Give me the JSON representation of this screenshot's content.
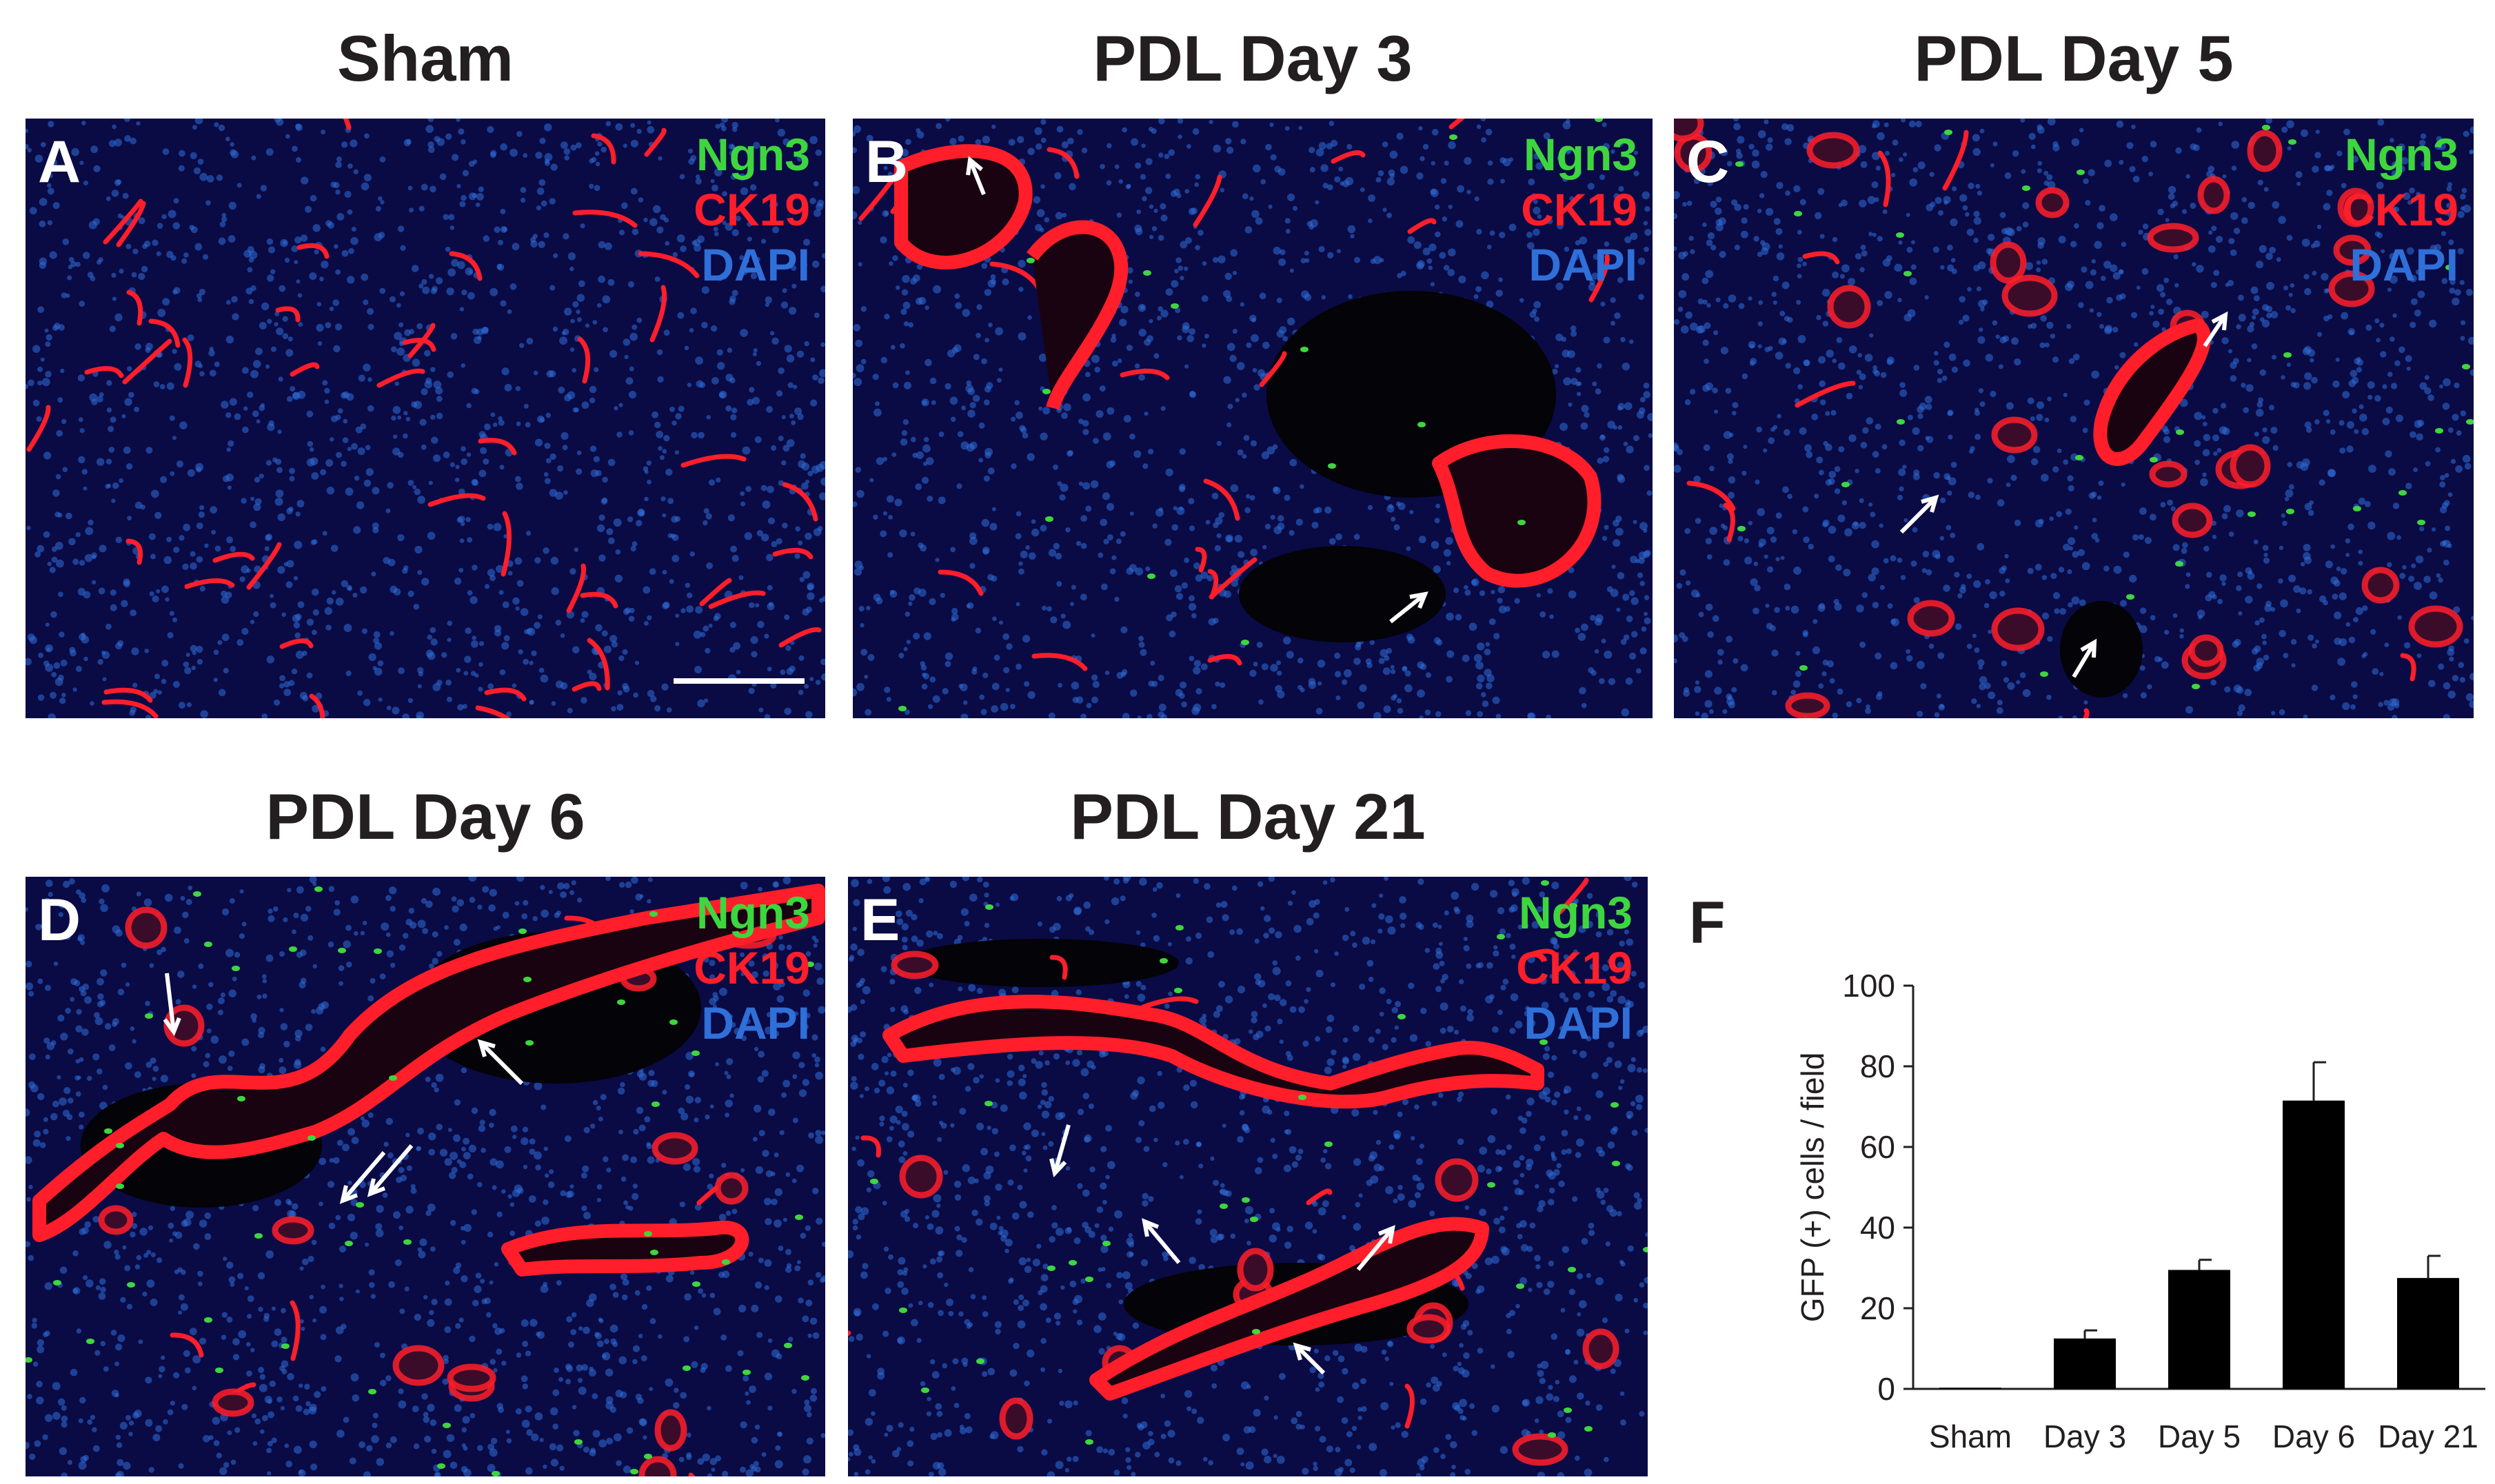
{
  "panels": [
    {
      "id": "A",
      "title": "Sham",
      "letter": "A",
      "legend": [
        "Ngn3",
        "CK19",
        "DAPI"
      ],
      "scale_bar": true
    },
    {
      "id": "B",
      "title": "PDL Day 3",
      "letter": "B",
      "legend": [
        "Ngn3",
        "CK19",
        "DAPI"
      ]
    },
    {
      "id": "C",
      "title": "PDL Day 5",
      "letter": "C",
      "legend": [
        "Ngn3",
        "CK19",
        "DAPI"
      ]
    },
    {
      "id": "D",
      "title": "PDL Day 6",
      "letter": "D",
      "legend": [
        "Ngn3",
        "CK19",
        "DAPI"
      ]
    },
    {
      "id": "E",
      "title": "PDL Day 21",
      "letter": "E",
      "legend": [
        "Ngn3",
        "CK19",
        "DAPI"
      ]
    }
  ],
  "stain_colors": {
    "Ngn3": "#3ed63e",
    "CK19": "#ff1e2a",
    "DAPI": "#2f6fd8",
    "background": "#04041e"
  },
  "chart_letter": "F",
  "chart_data": {
    "type": "bar",
    "categories": [
      "Sham",
      "Day 3",
      "Day 5",
      "Day 6",
      "Day 21"
    ],
    "values": [
      0.3,
      12.5,
      29.5,
      71.5,
      27.5
    ],
    "errors": [
      0,
      2,
      2.5,
      9.5,
      5.5
    ],
    "ylabel": "GFP (+)  cells / field",
    "xlabel": "",
    "ylim": [
      0,
      100
    ],
    "yticks": [
      0,
      20,
      40,
      60,
      80,
      100
    ],
    "bar_color": "#000000",
    "grid": false
  }
}
